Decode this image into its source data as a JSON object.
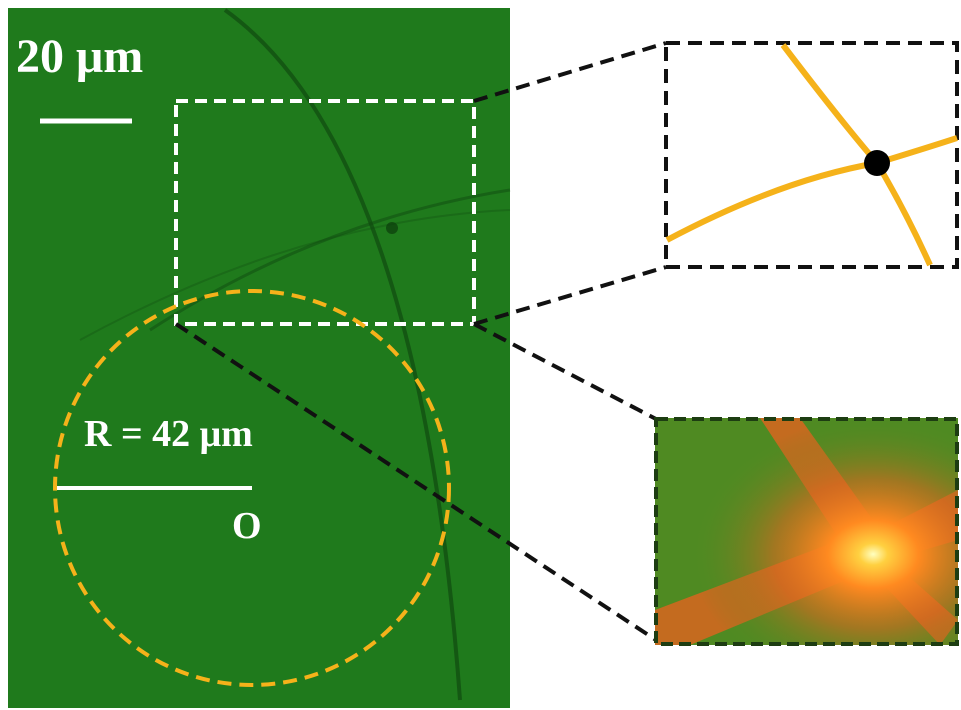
{
  "scale_bar": {
    "label": "20 μm"
  },
  "circle": {
    "label": "R = 42 μm",
    "center_label": "O"
  }
}
